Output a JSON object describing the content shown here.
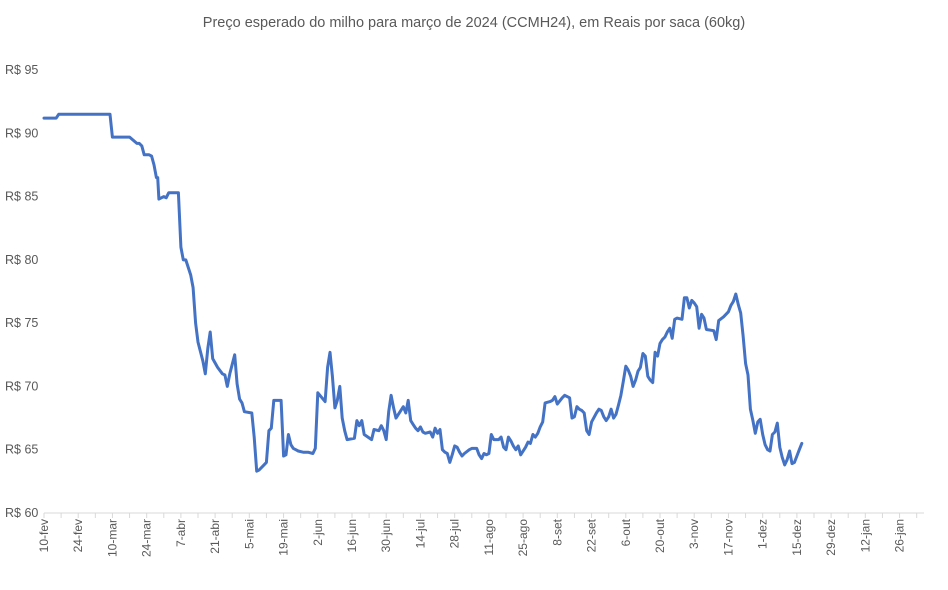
{
  "chart_data": {
    "type": "line",
    "title": "Preço esperado do milho para março de 2024 (CCMH24), em Reais por saca (60kg)",
    "xlabel": "",
    "ylabel": "",
    "ylim": [
      60,
      95
    ],
    "y_ticks": [
      "R$ 60",
      "R$ 65",
      "R$ 70",
      "R$ 75",
      "R$ 80",
      "R$ 85",
      "R$ 90",
      "R$ 95"
    ],
    "y_tick_values": [
      60,
      65,
      70,
      75,
      80,
      85,
      90,
      95
    ],
    "x_tick_labels": [
      "10-fev",
      "24-fev",
      "10-mar",
      "24-mar",
      "7-abr",
      "21-abr",
      "5-mai",
      "19-mai",
      "2-jun",
      "16-jun",
      "30-jun",
      "14-jul",
      "28-jul",
      "11-ago",
      "25-ago",
      "8-set",
      "22-set",
      "6-out",
      "20-out",
      "3-nov",
      "17-nov",
      "1-dez",
      "15-dez",
      "29-dez",
      "12-jan",
      "26-jan"
    ],
    "x_tick_days": [
      0,
      14,
      28,
      42,
      56,
      70,
      84,
      98,
      112,
      126,
      140,
      154,
      168,
      182,
      196,
      210,
      224,
      238,
      252,
      266,
      280,
      294,
      308,
      322,
      336,
      350
    ],
    "x_range_days": [
      0,
      360
    ],
    "series_color": "#4472c4",
    "grid": false,
    "legend": "none",
    "points": [
      [
        0,
        91.2
      ],
      [
        5,
        91.2
      ],
      [
        6,
        91.5
      ],
      [
        18,
        91.5
      ],
      [
        27,
        91.5
      ],
      [
        28,
        89.7
      ],
      [
        35,
        89.7
      ],
      [
        38,
        89.2
      ],
      [
        39,
        89.2
      ],
      [
        40,
        89.0
      ],
      [
        41,
        88.3
      ],
      [
        43,
        88.3
      ],
      [
        44,
        88.2
      ],
      [
        45,
        87.5
      ],
      [
        46,
        86.5
      ],
      [
        46.5,
        86.5
      ],
      [
        47,
        84.8
      ],
      [
        49,
        85.0
      ],
      [
        50,
        84.9
      ],
      [
        51,
        85.3
      ],
      [
        55,
        85.3
      ],
      [
        56,
        81.0
      ],
      [
        57,
        80.0
      ],
      [
        58,
        80.0
      ],
      [
        60,
        78.8
      ],
      [
        61,
        77.8
      ],
      [
        62,
        75.0
      ],
      [
        63,
        73.5
      ],
      [
        65,
        72.0
      ],
      [
        66,
        71.0
      ],
      [
        67,
        73.0
      ],
      [
        68,
        74.3
      ],
      [
        69,
        72.2
      ],
      [
        71,
        71.5
      ],
      [
        73,
        71.0
      ],
      [
        74,
        70.9
      ],
      [
        75,
        70.0
      ],
      [
        76,
        71.0
      ],
      [
        78,
        72.5
      ],
      [
        79,
        70.2
      ],
      [
        80,
        69.0
      ],
      [
        81,
        68.7
      ],
      [
        82,
        68.0
      ],
      [
        85,
        67.9
      ],
      [
        86,
        66.0
      ],
      [
        87,
        63.3
      ],
      [
        88,
        63.4
      ],
      [
        90,
        63.8
      ],
      [
        91,
        64.0
      ],
      [
        92,
        66.5
      ],
      [
        93,
        66.7
      ],
      [
        94,
        68.9
      ],
      [
        97,
        68.9
      ],
      [
        98,
        64.5
      ],
      [
        99,
        64.6
      ],
      [
        100,
        66.2
      ],
      [
        101,
        65.4
      ],
      [
        102,
        65.1
      ],
      [
        103,
        65.0
      ],
      [
        104,
        64.9
      ],
      [
        106,
        64.8
      ],
      [
        108,
        64.8
      ],
      [
        110,
        64.7
      ],
      [
        111,
        65.1
      ],
      [
        112,
        69.5
      ],
      [
        115,
        68.8
      ],
      [
        116,
        71.5
      ],
      [
        117,
        72.7
      ],
      [
        118,
        70.8
      ],
      [
        119,
        68.3
      ],
      [
        120,
        68.9
      ],
      [
        121,
        70.0
      ],
      [
        122,
        67.5
      ],
      [
        123,
        66.5
      ],
      [
        124,
        65.8
      ],
      [
        127,
        65.9
      ],
      [
        128,
        67.3
      ],
      [
        129,
        66.9
      ],
      [
        130,
        67.3
      ],
      [
        131,
        66.2
      ],
      [
        134,
        65.8
      ],
      [
        135,
        66.6
      ],
      [
        137,
        66.5
      ],
      [
        138,
        66.9
      ],
      [
        139,
        66.5
      ],
      [
        140,
        65.8
      ],
      [
        141,
        68.0
      ],
      [
        142,
        69.3
      ],
      [
        143,
        68.3
      ],
      [
        144,
        67.5
      ],
      [
        145,
        67.8
      ],
      [
        147,
        68.4
      ],
      [
        148,
        67.9
      ],
      [
        149,
        68.9
      ],
      [
        150,
        67.3
      ],
      [
        151,
        67.0
      ],
      [
        152,
        66.7
      ],
      [
        153,
        66.5
      ],
      [
        154,
        66.8
      ],
      [
        155,
        66.4
      ],
      [
        156,
        66.3
      ],
      [
        158,
        66.4
      ],
      [
        159,
        66.0
      ],
      [
        160,
        66.7
      ],
      [
        161,
        66.3
      ],
      [
        162,
        66.6
      ],
      [
        163,
        65.0
      ],
      [
        164,
        64.8
      ],
      [
        165,
        64.7
      ],
      [
        166,
        64.0
      ],
      [
        167,
        64.6
      ],
      [
        168,
        65.3
      ],
      [
        169,
        65.2
      ],
      [
        170,
        64.8
      ],
      [
        171,
        64.5
      ],
      [
        172,
        64.7
      ],
      [
        174,
        65.0
      ],
      [
        175,
        65.1
      ],
      [
        176,
        65.1
      ],
      [
        177,
        65.1
      ],
      [
        178,
        64.6
      ],
      [
        179,
        64.3
      ],
      [
        180,
        64.7
      ],
      [
        181,
        64.6
      ],
      [
        182,
        64.7
      ],
      [
        183,
        66.2
      ],
      [
        184,
        65.8
      ],
      [
        186,
        65.8
      ],
      [
        187,
        66.0
      ],
      [
        188,
        65.2
      ],
      [
        189,
        65.0
      ],
      [
        190,
        66.0
      ],
      [
        191,
        65.7
      ],
      [
        192,
        65.3
      ],
      [
        193,
        65.0
      ],
      [
        194,
        65.3
      ],
      [
        195,
        64.6
      ],
      [
        197,
        65.2
      ],
      [
        198,
        65.6
      ],
      [
        199,
        65.5
      ],
      [
        200,
        66.2
      ],
      [
        201,
        66.0
      ],
      [
        202,
        66.3
      ],
      [
        203,
        66.8
      ],
      [
        204,
        67.2
      ],
      [
        205,
        68.7
      ],
      [
        207,
        68.8
      ],
      [
        208,
        68.9
      ],
      [
        209,
        69.2
      ],
      [
        210,
        68.6
      ],
      [
        212,
        69.1
      ],
      [
        213,
        69.3
      ],
      [
        215,
        69.1
      ],
      [
        216,
        67.5
      ],
      [
        217,
        67.6
      ],
      [
        218,
        68.4
      ],
      [
        219,
        68.2
      ],
      [
        220,
        68.1
      ],
      [
        221,
        67.9
      ],
      [
        222,
        66.5
      ],
      [
        223,
        66.2
      ],
      [
        224,
        67.2
      ],
      [
        226,
        67.9
      ],
      [
        227,
        68.2
      ],
      [
        228,
        68.1
      ],
      [
        229,
        67.6
      ],
      [
        230,
        67.3
      ],
      [
        231,
        67.6
      ],
      [
        232,
        68.2
      ],
      [
        233,
        67.5
      ],
      [
        234,
        67.8
      ],
      [
        235,
        68.5
      ],
      [
        236,
        69.3
      ],
      [
        237,
        70.4
      ],
      [
        238,
        71.6
      ],
      [
        239,
        71.3
      ],
      [
        240,
        70.8
      ],
      [
        241,
        70.0
      ],
      [
        242,
        70.5
      ],
      [
        243,
        71.2
      ],
      [
        244,
        71.5
      ],
      [
        245,
        72.6
      ],
      [
        246,
        72.4
      ],
      [
        247,
        70.8
      ],
      [
        248,
        70.5
      ],
      [
        249,
        70.3
      ],
      [
        250,
        72.7
      ],
      [
        251,
        72.4
      ],
      [
        252,
        73.4
      ],
      [
        253,
        73.7
      ],
      [
        254,
        73.9
      ],
      [
        255,
        74.3
      ],
      [
        256,
        74.6
      ],
      [
        257,
        73.8
      ],
      [
        258,
        75.3
      ],
      [
        259,
        75.4
      ],
      [
        261,
        75.3
      ],
      [
        262,
        77.0
      ],
      [
        263,
        77.0
      ],
      [
        264,
        76.2
      ],
      [
        265,
        76.8
      ],
      [
        266,
        76.6
      ],
      [
        267,
        76.3
      ],
      [
        268,
        74.6
      ],
      [
        269,
        75.7
      ],
      [
        270,
        75.4
      ],
      [
        271,
        74.5
      ],
      [
        274,
        74.4
      ],
      [
        275,
        73.7
      ],
      [
        276,
        75.2
      ],
      [
        278,
        75.5
      ],
      [
        280,
        75.9
      ],
      [
        281,
        76.4
      ],
      [
        282,
        76.7
      ],
      [
        283,
        77.3
      ],
      [
        284,
        76.5
      ],
      [
        285,
        75.8
      ],
      [
        286,
        74.0
      ],
      [
        287,
        71.8
      ],
      [
        288,
        70.9
      ],
      [
        289,
        68.2
      ],
      [
        290,
        67.3
      ],
      [
        291,
        66.3
      ],
      [
        292,
        67.2
      ],
      [
        293,
        67.4
      ],
      [
        294,
        66.2
      ],
      [
        295,
        65.4
      ],
      [
        296,
        65.0
      ],
      [
        297,
        64.9
      ],
      [
        298,
        66.2
      ],
      [
        299,
        66.4
      ],
      [
        300,
        67.1
      ],
      [
        301,
        65.2
      ],
      [
        302,
        64.4
      ],
      [
        303,
        63.8
      ],
      [
        304,
        64.2
      ],
      [
        305,
        64.9
      ],
      [
        306,
        63.9
      ],
      [
        307,
        64.0
      ],
      [
        308,
        64.5
      ],
      [
        309,
        65.0
      ],
      [
        310,
        65.5
      ]
    ]
  }
}
